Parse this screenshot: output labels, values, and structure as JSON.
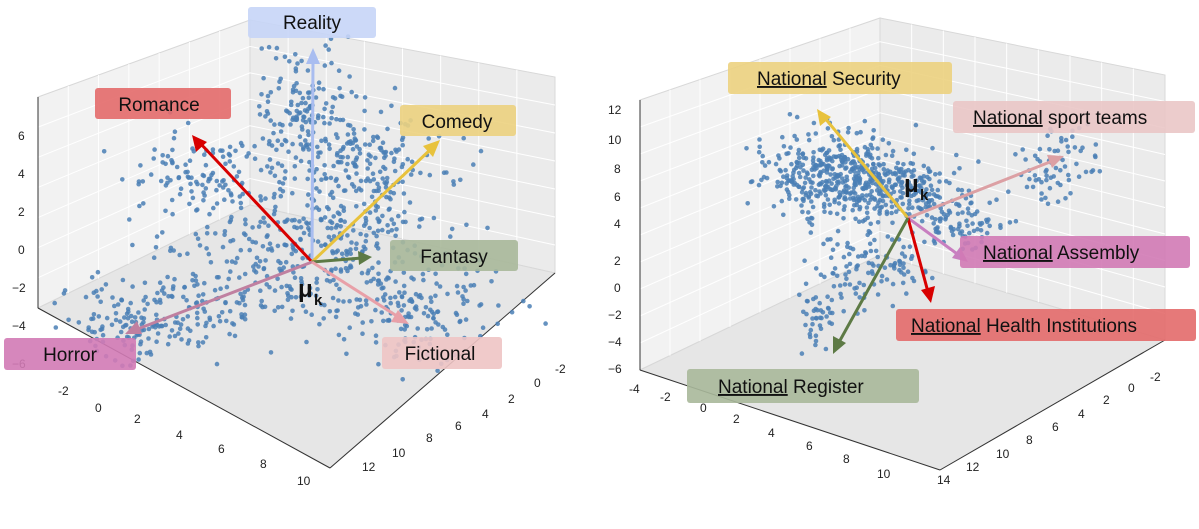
{
  "chart_data": [
    {
      "type": "scatter",
      "projection": "3d",
      "title": "",
      "xlim": [
        -3,
        10
      ],
      "ylim": [
        -2,
        12
      ],
      "zlim": [
        -6,
        7
      ],
      "xticks": [
        "-2",
        "0",
        "2",
        "4",
        "6",
        "8",
        "10"
      ],
      "yticks": [
        "-2",
        "0",
        "2",
        "4",
        "6",
        "8",
        "10",
        "12"
      ],
      "zticks": [
        "−6",
        "−4",
        "−2",
        "0",
        "2",
        "4",
        "6"
      ],
      "center_label": "μ",
      "center_subscript": "k",
      "points_color": "#4a7fb5",
      "directions": [
        {
          "label": "Reality",
          "color": "#a9bdf0",
          "box_color": "#c6d5f7"
        },
        {
          "label": "Romance",
          "color": "#d80000",
          "box_color": "#e36a6a"
        },
        {
          "label": "Comedy",
          "color": "#e8c23c",
          "box_color": "#ecd17f"
        },
        {
          "label": "Fantasy",
          "color": "#5d7a45",
          "box_color": "#a8b89a"
        },
        {
          "label": "Horror",
          "color": "#c080a0",
          "box_color": "#d27ab5"
        },
        {
          "label": "Fictional",
          "color": "#e8a0a8",
          "box_color": "#eec4c4"
        }
      ]
    },
    {
      "type": "scatter",
      "projection": "3d",
      "title": "",
      "xlim": [
        -4,
        12
      ],
      "ylim": [
        -2,
        14
      ],
      "zlim": [
        -6,
        12
      ],
      "xticks": [
        "-4",
        "-2",
        "0",
        "2",
        "4",
        "6",
        "8",
        "10"
      ],
      "yticks": [
        "-2",
        "0",
        "2",
        "4",
        "6",
        "8",
        "10",
        "12",
        "14"
      ],
      "zticks": [
        "−6",
        "−4",
        "−2",
        "0",
        "2",
        "4",
        "6",
        "8",
        "10",
        "12"
      ],
      "center_label": "μ",
      "center_subscript": "k",
      "points_color": "#4a7fb5",
      "directions": [
        {
          "label_underlined": "National",
          "label_rest": " Security",
          "color": "#e8c23c",
          "box_color": "#ecd17f"
        },
        {
          "label_underlined": "National",
          "label_rest": " sport teams",
          "color": "#dca0a4",
          "box_color": "#eac6c6"
        },
        {
          "label_underlined": "National",
          "label_rest": " Assembly",
          "color": "#c87fc0",
          "box_color": "#d27ab5"
        },
        {
          "label_underlined": "National",
          "label_rest": " Health Institutions",
          "color": "#d80000",
          "box_color": "#e36a6a"
        },
        {
          "label_underlined": "National",
          "label_rest": " Register",
          "color": "#5d7a45",
          "box_color": "#a8b89a"
        }
      ]
    }
  ]
}
